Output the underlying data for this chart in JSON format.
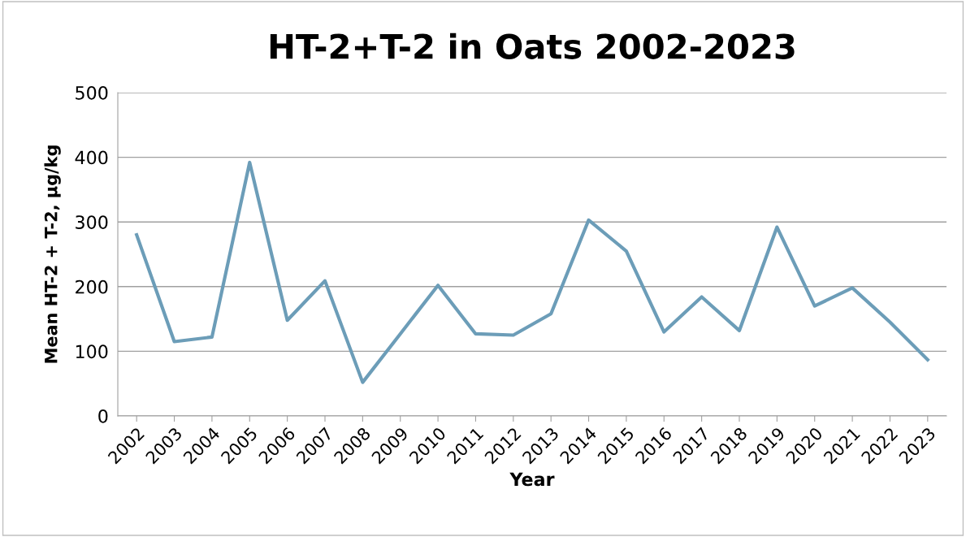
{
  "chart_data": {
    "type": "line",
    "title": "HT-2+T-2 in Oats 2002-2023",
    "xlabel": "Year",
    "ylabel": "Mean HT-2 + T-2, µg/kg",
    "categories": [
      "2002",
      "2003",
      "2004",
      "2005",
      "2006",
      "2007",
      "2008",
      "2009",
      "2010",
      "2011",
      "2012",
      "2013",
      "2014",
      "2015",
      "2016",
      "2017",
      "2018",
      "2019",
      "2020",
      "2021",
      "2022",
      "2023"
    ],
    "series": [
      {
        "color": "#6c9db8",
        "values": [
          280,
          115,
          122,
          392,
          148,
          209,
          52,
          127,
          202,
          127,
          125,
          158,
          303,
          255,
          130,
          184,
          132,
          292,
          170,
          198,
          145,
          87
        ]
      }
    ],
    "ylim": [
      0,
      500
    ],
    "yticks": [
      0,
      100,
      200,
      300,
      400,
      500
    ],
    "grid": "y",
    "legend": false,
    "marker": "none",
    "line_style": "solid"
  }
}
